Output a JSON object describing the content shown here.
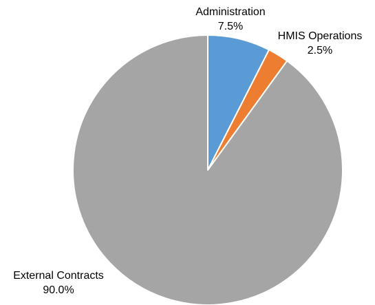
{
  "chart_data": {
    "type": "pie",
    "title": "",
    "start_angle_deg": 0,
    "direction": "clockwise",
    "slices": [
      {
        "name": "Administration",
        "value": 7.5,
        "label": "7.5%",
        "color": "#5b9bd5"
      },
      {
        "name": "HMIS Operations",
        "value": 2.5,
        "label": "2.5%",
        "color": "#ed7d31"
      },
      {
        "name": "External Contracts",
        "value": 90.0,
        "label": "90.0%",
        "color": "#a5a5a5"
      }
    ],
    "slice_border_color": "#ffffff",
    "legend": "none"
  }
}
